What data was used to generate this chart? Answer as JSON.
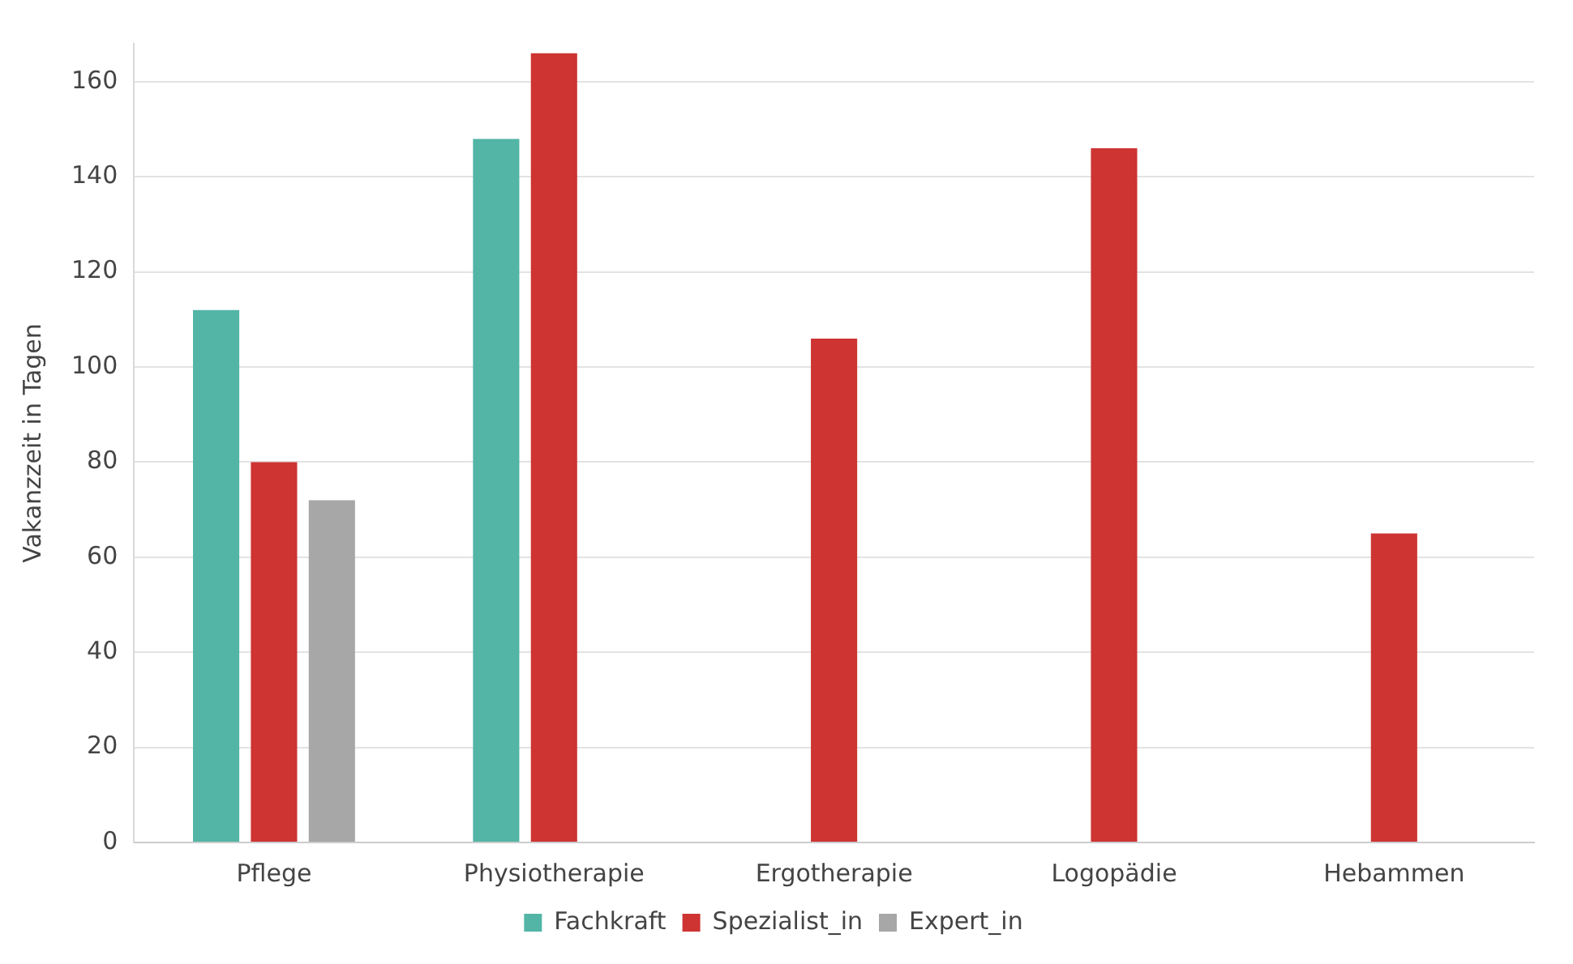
{
  "chart_data": {
    "type": "bar",
    "ylabel": "Vakanzzeit in Tagen",
    "categories": [
      "Pflege",
      "Physiotherapie",
      "Ergotherapie",
      "Logopädie",
      "Hebammen"
    ],
    "series": [
      {
        "name": "Fachkraft",
        "color": "#52b5a6",
        "values": [
          112,
          148,
          null,
          null,
          null
        ]
      },
      {
        "name": "Spezialist_in",
        "color": "#cd3432",
        "values": [
          80,
          166,
          106,
          146,
          65
        ]
      },
      {
        "name": "Expert_in",
        "color": "#a8a7a8",
        "values": [
          72,
          null,
          null,
          null,
          null
        ]
      }
    ],
    "ylim": [
      0,
      168
    ],
    "yticks": [
      0,
      20,
      40,
      60,
      80,
      100,
      120,
      140,
      160
    ],
    "grid": "y",
    "legend": "bottom"
  }
}
